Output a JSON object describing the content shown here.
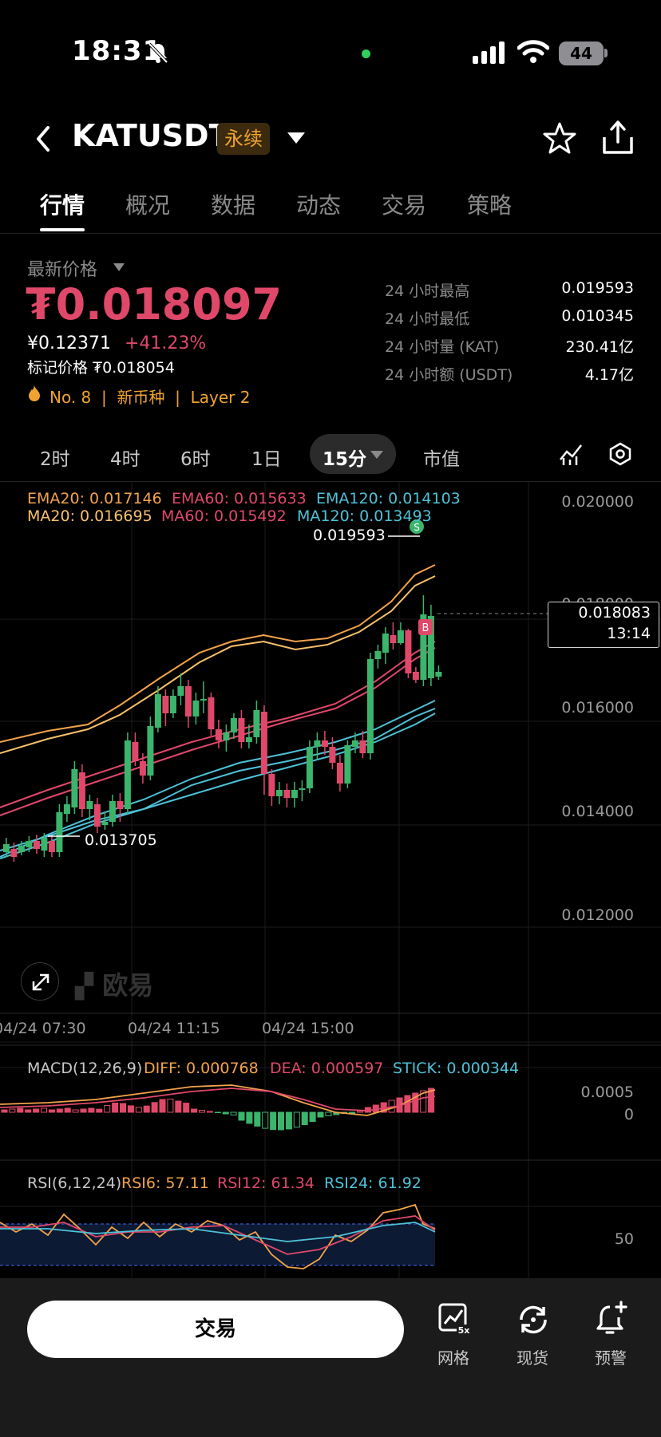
{
  "status_bar": {
    "time": "18:31",
    "battery": "44"
  },
  "header": {
    "pair": "KATUSDT",
    "badge": "永续"
  },
  "tabs": [
    "行情",
    "概况",
    "数据",
    "动态",
    "交易",
    "策略"
  ],
  "price": {
    "latest_label": "最新价格",
    "last": "₮0.018097",
    "cny": "¥0.12371",
    "change": "+41.23%",
    "mark_label": "标记价格 ₮0.018054",
    "tags": "No. 8  |  新币种  |  Layer 2"
  },
  "stats": [
    {
      "label": "24 小时最高",
      "value": "0.019593"
    },
    {
      "label": "24 小时最低",
      "value": "0.010345"
    },
    {
      "label": "24 小时量 (KAT)",
      "value": "230.41亿"
    },
    {
      "label": "24 小时额 (USDT)",
      "value": "4.17亿"
    }
  ],
  "intervals": [
    "2时",
    "4时",
    "6时",
    "1日",
    "15分",
    "市值"
  ],
  "legends": {
    "ema20": "EMA20: 0.017146",
    "ema60": "EMA60: 0.015633",
    "ema120": "EMA120: 0.014103",
    "ma20": "MA20: 0.016695",
    "ma60": "MA60: 0.015492",
    "ma120": "MA120: 0.013493"
  },
  "chart_labels": {
    "high": "0.019593",
    "low": "0.013705",
    "marker_s": "S",
    "marker_b": "B",
    "price_tag": "0.018083",
    "countdown": "13:14",
    "watermark": "欧易"
  },
  "price_axis": [
    "0.020000",
    "0.018000",
    "0.016000",
    "0.014000",
    "0.012000"
  ],
  "time_axis": [
    "04/24 07:30",
    "04/24 11:15",
    "04/24 15:00"
  ],
  "macd": {
    "title": "MACD(12,26,9)",
    "diff": "DIFF: 0.000768",
    "dea": "DEA: 0.000597",
    "stick": "STICK: 0.000344",
    "axis": [
      "0.0005",
      "0"
    ]
  },
  "rsi": {
    "title": "RSI(6,12,24)",
    "rsi6": "RSI6: 57.11",
    "rsi12": "RSI12: 61.34",
    "rsi24": "RSI24: 61.92",
    "axis": "50"
  },
  "bottom": {
    "trade": "交易",
    "grid": "网格",
    "spot": "现货",
    "alert": "预警"
  },
  "colors": {
    "up": "#3bb56c",
    "down": "#e0486a",
    "ema20": "#f3a34a",
    "ema60": "#e0486a",
    "ema120": "#4ec2d8",
    "ma20": "#f7c06b",
    "ma60": "#e0486a",
    "ma120": "#4ec2d8"
  }
}
